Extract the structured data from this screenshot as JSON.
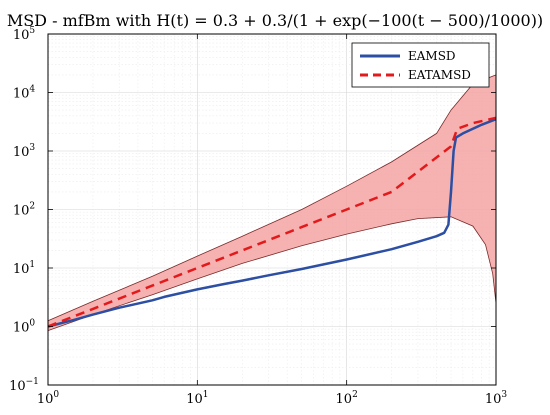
{
  "chart_data": {
    "type": "line",
    "title": "MSD - mfBm with H(t) = 0.3 + 0.3/(1 + exp(−100(t − 500)/1000))",
    "xlabel": "",
    "ylabel": "",
    "xscale": "log",
    "yscale": "log",
    "xlim": [
      1,
      1000
    ],
    "ylim": [
      0.1,
      100000
    ],
    "grid": true,
    "legend_position": "top-right",
    "x_ticks": [
      {
        "base": "10",
        "exp": "0"
      },
      {
        "base": "10",
        "exp": "1"
      },
      {
        "base": "10",
        "exp": "2"
      },
      {
        "base": "10",
        "exp": "3"
      }
    ],
    "y_ticks": [
      {
        "base": "10",
        "exp": "−1"
      },
      {
        "base": "10",
        "exp": "0"
      },
      {
        "base": "10",
        "exp": "1"
      },
      {
        "base": "10",
        "exp": "2"
      },
      {
        "base": "10",
        "exp": "3"
      },
      {
        "base": "10",
        "exp": "4"
      },
      {
        "base": "10",
        "exp": "5"
      }
    ],
    "series": [
      {
        "name": "EAMSD",
        "color": "#2c4fa3",
        "style": "solid",
        "points": [
          [
            1,
            1.0
          ],
          [
            1.5,
            1.3
          ],
          [
            2,
            1.6
          ],
          [
            3,
            2.1
          ],
          [
            5,
            2.8
          ],
          [
            6,
            3.2
          ],
          [
            10,
            4.3
          ],
          [
            15,
            5.3
          ],
          [
            20,
            6.1
          ],
          [
            30,
            7.5
          ],
          [
            50,
            9.6
          ],
          [
            100,
            14
          ],
          [
            200,
            21
          ],
          [
            300,
            28
          ],
          [
            400,
            35
          ],
          [
            450,
            40
          ],
          [
            480,
            55
          ],
          [
            500,
            200
          ],
          [
            520,
            1000
          ],
          [
            540,
            1700
          ],
          [
            600,
            2000
          ],
          [
            700,
            2400
          ],
          [
            800,
            2800
          ],
          [
            1000,
            3500
          ]
        ]
      },
      {
        "name": "EATAMSD",
        "color": "#e31a1c",
        "style": "dashed",
        "points": [
          [
            1,
            1.0
          ],
          [
            2,
            2.0
          ],
          [
            5,
            5.0
          ],
          [
            10,
            10.0
          ],
          [
            20,
            20
          ],
          [
            50,
            50
          ],
          [
            100,
            100
          ],
          [
            200,
            200
          ],
          [
            500,
            1200
          ],
          [
            550,
            2400
          ],
          [
            700,
            3000
          ],
          [
            1000,
            3700
          ]
        ]
      }
    ],
    "band": {
      "color": "#f5a3a3",
      "edge_color": "#7a2a2a",
      "upper": [
        [
          1,
          1.25
        ],
        [
          2,
          2.7
        ],
        [
          5,
          7.2
        ],
        [
          10,
          16
        ],
        [
          20,
          35
        ],
        [
          50,
          100
        ],
        [
          100,
          250
        ],
        [
          200,
          650
        ],
        [
          400,
          2000
        ],
        [
          500,
          5000
        ],
        [
          700,
          14000
        ],
        [
          1000,
          20000
        ]
      ],
      "lower": [
        [
          1,
          0.85
        ],
        [
          2,
          1.6
        ],
        [
          5,
          3.5
        ],
        [
          10,
          6.5
        ],
        [
          20,
          12
        ],
        [
          50,
          24
        ],
        [
          100,
          38
        ],
        [
          200,
          57
        ],
        [
          300,
          70
        ],
        [
          500,
          75
        ],
        [
          700,
          52
        ],
        [
          850,
          25
        ],
        [
          950,
          8
        ],
        [
          1000,
          2.5
        ]
      ]
    }
  }
}
